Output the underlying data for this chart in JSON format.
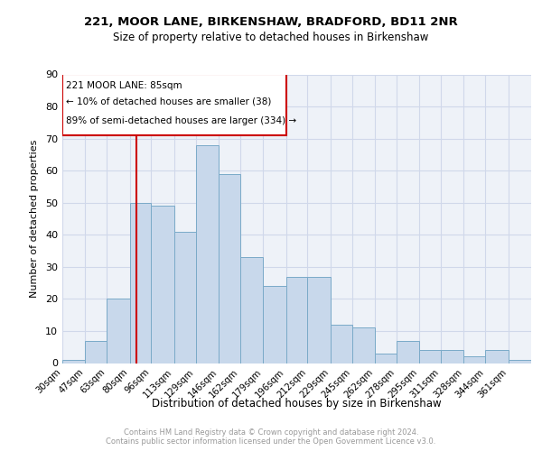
{
  "title1": "221, MOOR LANE, BIRKENSHAW, BRADFORD, BD11 2NR",
  "title2": "Size of property relative to detached houses in Birkenshaw",
  "xlabel": "Distribution of detached houses by size in Birkenshaw",
  "ylabel": "Number of detached properties",
  "footer1": "Contains HM Land Registry data © Crown copyright and database right 2024.",
  "footer2": "Contains public sector information licensed under the Open Government Licence v3.0.",
  "annotation_line1": "221 MOOR LANE: 85sqm",
  "annotation_line2": "← 10% of detached houses are smaller (38)",
  "annotation_line3": "89% of semi-detached houses are larger (334) →",
  "bar_labels": [
    "30sqm",
    "47sqm",
    "63sqm",
    "80sqm",
    "96sqm",
    "113sqm",
    "129sqm",
    "146sqm",
    "162sqm",
    "179sqm",
    "196sqm",
    "212sqm",
    "229sqm",
    "245sqm",
    "262sqm",
    "278sqm",
    "295sqm",
    "311sqm",
    "328sqm",
    "344sqm",
    "361sqm"
  ],
  "bar_values": [
    1,
    7,
    20,
    50,
    49,
    41,
    68,
    59,
    33,
    24,
    27,
    27,
    12,
    11,
    3,
    7,
    4,
    4,
    2,
    4,
    1
  ],
  "bar_edges": [
    30,
    47,
    63,
    80,
    96,
    113,
    129,
    146,
    162,
    179,
    196,
    212,
    229,
    245,
    262,
    278,
    295,
    311,
    328,
    344,
    361,
    378
  ],
  "bar_color": "#c8d8eb",
  "bar_edge_color": "#7aaac8",
  "grid_color": "#d0d8ea",
  "bg_color": "#eef2f8",
  "vline_color": "#cc0000",
  "vline_x": 85,
  "box_color": "#cc0000",
  "ylim": [
    0,
    90
  ],
  "yticks": [
    0,
    10,
    20,
    30,
    40,
    50,
    60,
    70,
    80,
    90
  ]
}
